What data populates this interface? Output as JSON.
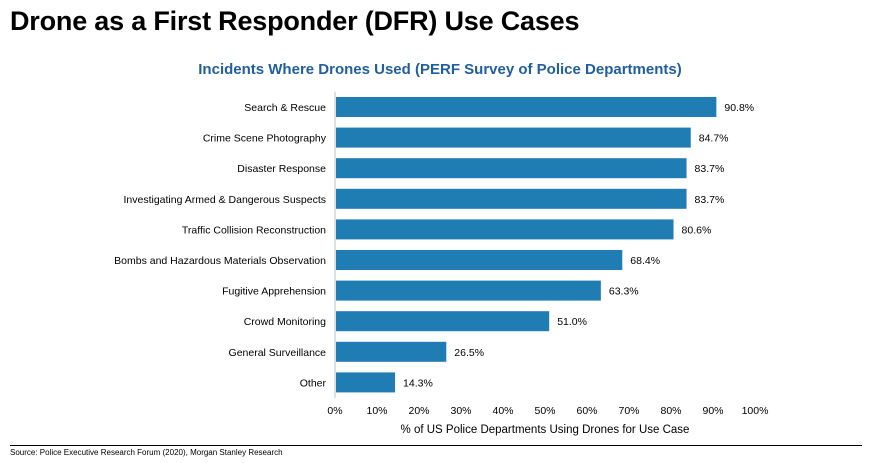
{
  "page": {
    "title": "Drone as a First Responder (DFR) Use Cases",
    "source": "Source: Police Executive Research Forum (2020), Morgan Stanley Research"
  },
  "colors": {
    "bar": "#1f7db4",
    "title_blue": "#1f5f9f"
  },
  "chart_data": {
    "type": "bar",
    "orientation": "horizontal",
    "title": "Incidents Where Drones Used (PERF Survey of Police Departments)",
    "xlabel": "% of US Police Departments Using Drones for Use Case",
    "ylabel": "",
    "xlim": [
      0,
      100
    ],
    "x_ticks": [
      "0%",
      "10%",
      "20%",
      "30%",
      "40%",
      "50%",
      "60%",
      "70%",
      "80%",
      "90%",
      "100%"
    ],
    "grid": false,
    "legend": "none",
    "categories": [
      "Search & Rescue",
      "Crime Scene Photography",
      "Disaster Response",
      "Investigating Armed & Dangerous Suspects",
      "Traffic Collision Reconstruction",
      "Bombs and Hazardous Materials Observation",
      "Fugitive Apprehension",
      "Crowd Monitoring",
      "General Surveillance",
      "Other"
    ],
    "values": [
      90.8,
      84.7,
      83.7,
      83.7,
      80.6,
      68.4,
      63.3,
      51.0,
      26.5,
      14.3
    ],
    "value_labels": [
      "90.8%",
      "84.7%",
      "83.7%",
      "83.7%",
      "80.6%",
      "68.4%",
      "63.3%",
      "51.0%",
      "26.5%",
      "14.3%"
    ]
  }
}
